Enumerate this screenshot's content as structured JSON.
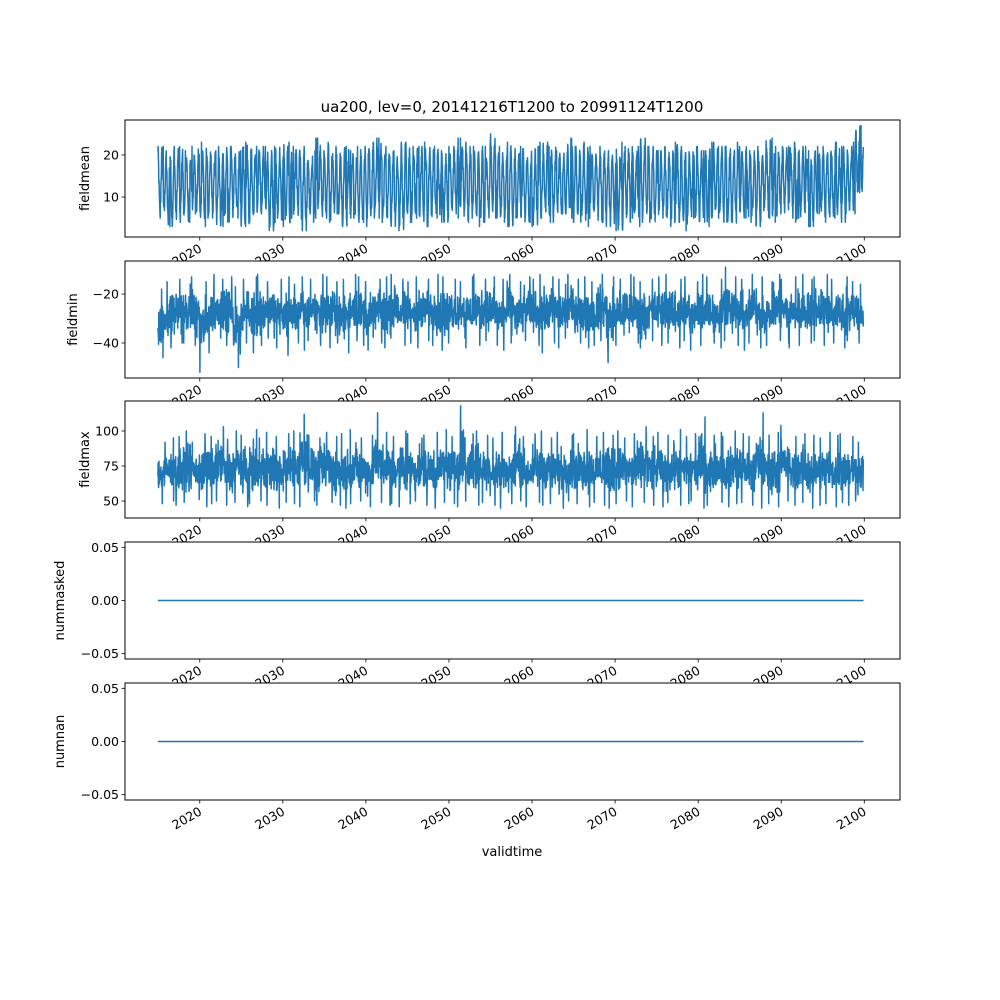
{
  "chart_data": {
    "type": "line",
    "title": "ua200, lev=0, 20141216T1200 to 20991124T1200",
    "xlabel": "validtime",
    "x_range": [
      2014.96,
      2099.9
    ],
    "xlim": [
      2011.0,
      2104.3
    ],
    "x_ticks": [
      2020,
      2030,
      2040,
      2050,
      2060,
      2070,
      2080,
      2090,
      2100
    ],
    "x_tick_labels": [
      "2020",
      "2030",
      "2040",
      "2050",
      "2060",
      "2070",
      "2080",
      "2090",
      "2100"
    ],
    "line_color": "#1f77b4",
    "panels": [
      {
        "name": "fieldmean",
        "ylabel": "fieldmean",
        "ylim": [
          0.5,
          28.3
        ],
        "y_ticks": [
          10,
          20
        ],
        "y_tick_labels": [
          "10",
          "20"
        ],
        "style": "seasonal",
        "yearly_max": [
          22,
          22,
          22,
          21,
          22,
          23,
          21,
          22,
          22,
          21,
          23,
          22,
          22,
          21,
          22,
          23,
          22,
          22,
          21,
          24,
          23,
          22,
          22,
          21,
          22,
          23,
          24,
          22,
          21,
          23,
          22,
          22,
          23,
          22,
          21,
          22,
          24,
          23,
          22,
          22,
          25,
          22,
          23,
          22,
          21,
          22,
          23,
          22,
          21,
          24,
          22,
          23,
          22,
          22,
          21,
          23,
          22,
          22,
          24,
          22,
          21,
          22,
          23,
          22,
          22,
          21,
          23,
          22,
          22,
          23,
          22,
          21,
          22,
          24,
          22,
          22,
          23,
          22,
          21,
          22,
          22,
          23,
          22,
          23,
          27
        ],
        "yearly_min": [
          5,
          3,
          4,
          4,
          6,
          3,
          5,
          3,
          4,
          5,
          3,
          4,
          6,
          2,
          4,
          3,
          5,
          2,
          4,
          5,
          4,
          6,
          3,
          5,
          4,
          3,
          5,
          4,
          3,
          2,
          4,
          5,
          3,
          5,
          4,
          6,
          5,
          4,
          3,
          4,
          5,
          4,
          3,
          5,
          4,
          3,
          5,
          4,
          6,
          5,
          4,
          3,
          5,
          4,
          3,
          2,
          4,
          5,
          3,
          4,
          5,
          3,
          4,
          2,
          5,
          4,
          3,
          5,
          4,
          3,
          5,
          4,
          3,
          5,
          4,
          6,
          4,
          5,
          3,
          6,
          4,
          5,
          4,
          6,
          11
        ]
      },
      {
        "name": "fieldmin",
        "ylabel": "fieldmin",
        "ylim": [
          -54.3,
          -6.5
        ],
        "y_ticks": [
          -40,
          -20
        ],
        "y_tick_labels": [
          "−40",
          "−20"
        ],
        "style": "noisy",
        "yearly_max": [
          -18,
          -15,
          -14,
          -16,
          -13,
          -15,
          -12,
          -14,
          -13,
          -17,
          -14,
          -13,
          -12,
          -15,
          -14,
          -13,
          -16,
          -13,
          -14,
          -12,
          -13,
          -15,
          -14,
          -12,
          -13,
          -15,
          -14,
          -13,
          -12,
          -14,
          -15,
          -13,
          -14,
          -12,
          -13,
          -14,
          -15,
          -13,
          -12,
          -14,
          -13,
          -14,
          -12,
          -15,
          -13,
          -14,
          -12,
          -13,
          -14,
          -12,
          -14,
          -13,
          -15,
          -12,
          -13,
          -14,
          -12,
          -13,
          -15,
          -14,
          -13,
          -12,
          -14,
          -13,
          -15,
          -12,
          -13,
          -14,
          -9,
          -13,
          -14,
          -12,
          -13,
          -15,
          -12,
          -14,
          -13,
          -12,
          -14,
          -13,
          -12,
          -14,
          -13,
          -15,
          -16
        ],
        "yearly_min": [
          -46,
          -42,
          -40,
          -40,
          -41,
          -52,
          -44,
          -38,
          -41,
          -50,
          -40,
          -44,
          -41,
          -38,
          -42,
          -45,
          -40,
          -43,
          -39,
          -41,
          -42,
          -40,
          -44,
          -39,
          -41,
          -43,
          -40,
          -42,
          -38,
          -41,
          -40,
          -42,
          -39,
          -41,
          -43,
          -40,
          -38,
          -42,
          -41,
          -39,
          -41,
          -43,
          -40,
          -42,
          -39,
          -41,
          -44,
          -40,
          -42,
          -38,
          -40,
          -42,
          -41,
          -39,
          -48,
          -41,
          -43,
          -40,
          -42,
          -39,
          -41,
          -40,
          -42,
          -39,
          -43,
          -41,
          -40,
          -42,
          -39,
          -41,
          -43,
          -40,
          -42,
          -41,
          -39,
          -40,
          -42,
          -41,
          -40,
          -39,
          -41,
          -40,
          -42,
          -39,
          -40
        ]
      },
      {
        "name": "fieldmax",
        "ylabel": "fieldmax",
        "ylim": [
          37.9,
          121.4
        ],
        "y_ticks": [
          50,
          75,
          100
        ],
        "y_tick_labels": [
          "50",
          "75",
          "100"
        ],
        "style": "noisy",
        "yearly_max": [
          92,
          95,
          96,
          100,
          92,
          98,
          96,
          103,
          94,
          100,
          97,
          101,
          95,
          99,
          96,
          98,
          100,
          112,
          97,
          95,
          99,
          96,
          98,
          101,
          95,
          97,
          113,
          99,
          96,
          100,
          98,
          95,
          97,
          99,
          101,
          96,
          118,
          98,
          100,
          97,
          95,
          99,
          97,
          103,
          96,
          98,
          100,
          95,
          99,
          97,
          98,
          101,
          96,
          99,
          97,
          100,
          95,
          98,
          103,
          96,
          99,
          97,
          101,
          96,
          98,
          110,
          97,
          99,
          96,
          100,
          98,
          96,
          113,
          97,
          99,
          104,
          96,
          98,
          97,
          95,
          99,
          97,
          98,
          96,
          92
        ],
        "yearly_min": [
          48,
          50,
          47,
          49,
          51,
          46,
          48,
          50,
          47,
          49,
          46,
          48,
          50,
          47,
          45,
          49,
          48,
          46,
          50,
          47,
          49,
          47,
          45,
          48,
          50,
          46,
          49,
          47,
          48,
          46,
          48,
          50,
          47,
          45,
          49,
          48,
          46,
          50,
          47,
          49,
          47,
          45,
          48,
          50,
          46,
          49,
          47,
          48,
          45,
          50,
          48,
          46,
          49,
          47,
          45,
          48,
          50,
          46,
          49,
          47,
          46,
          49,
          47,
          48,
          50,
          45,
          47,
          49,
          46,
          48,
          49,
          47,
          45,
          48,
          46,
          50,
          47,
          49,
          45,
          47,
          48,
          46,
          49,
          47,
          50
        ]
      },
      {
        "name": "nummasked",
        "ylabel": "nummasked",
        "ylim": [
          -0.055,
          0.055
        ],
        "y_ticks": [
          -0.05,
          0.0,
          0.05
        ],
        "y_tick_labels": [
          "−0.05",
          "0.00",
          "0.05"
        ],
        "style": "constant",
        "constant_value": 0.0
      },
      {
        "name": "numnan",
        "ylabel": "numnan",
        "ylim": [
          -0.055,
          0.055
        ],
        "y_ticks": [
          -0.05,
          0.0,
          0.05
        ],
        "y_tick_labels": [
          "−0.05",
          "0.00",
          "0.05"
        ],
        "style": "constant",
        "constant_value": 0.0
      }
    ]
  }
}
